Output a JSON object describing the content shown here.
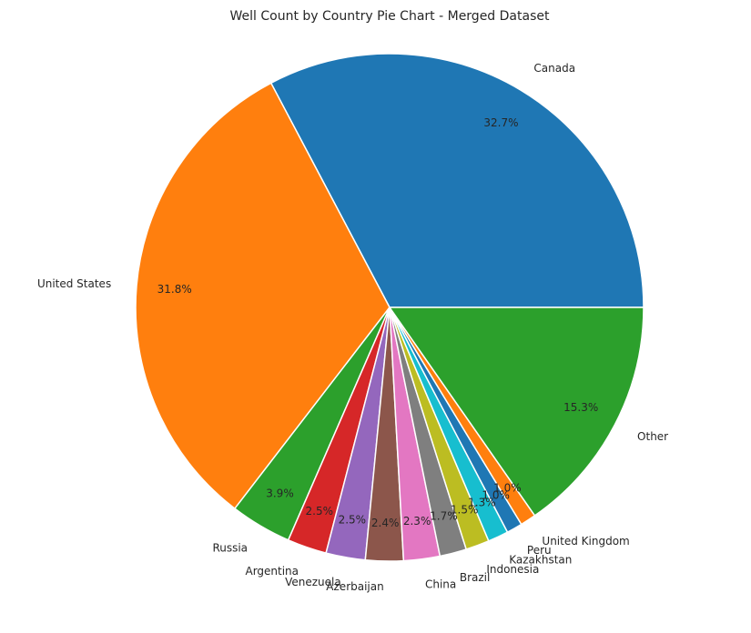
{
  "chart_data": {
    "type": "pie",
    "title": "Well Count by Country Pie Chart - Merged Dataset",
    "slices": [
      {
        "label": "Canada",
        "value": 32.7,
        "pct_label": "32.7%",
        "color": "#1f77b4"
      },
      {
        "label": "United States",
        "value": 31.8,
        "pct_label": "31.8%",
        "color": "#ff7f0e"
      },
      {
        "label": "Russia",
        "value": 3.9,
        "pct_label": "3.9%",
        "color": "#2ca02c"
      },
      {
        "label": "Argentina",
        "value": 2.5,
        "pct_label": "2.5%",
        "color": "#d62728"
      },
      {
        "label": "Venezuela",
        "value": 2.5,
        "pct_label": "2.5%",
        "color": "#9467bd"
      },
      {
        "label": "Azerbaijan",
        "value": 2.4,
        "pct_label": "2.4%",
        "color": "#8c564b"
      },
      {
        "label": "China",
        "value": 2.3,
        "pct_label": "2.3%",
        "color": "#e377c2"
      },
      {
        "label": "Brazil",
        "value": 1.7,
        "pct_label": "1.7%",
        "color": "#7f7f7f"
      },
      {
        "label": "Indonesia",
        "value": 1.5,
        "pct_label": "1.5%",
        "color": "#bcbd22"
      },
      {
        "label": "Kazakhstan",
        "value": 1.3,
        "pct_label": "1.3%",
        "color": "#17becf"
      },
      {
        "label": "Peru",
        "value": 1.0,
        "pct_label": "1.0%",
        "color": "#1f77b4"
      },
      {
        "label": "United Kingdom",
        "value": 1.0,
        "pct_label": "1.0%",
        "color": "#ff7f0e"
      },
      {
        "label": "Other",
        "value": 15.3,
        "pct_label": "15.3%",
        "color": "#2ca02c"
      }
    ],
    "start_angle_deg": 0,
    "direction": "counterclockwise",
    "legend": "none"
  }
}
